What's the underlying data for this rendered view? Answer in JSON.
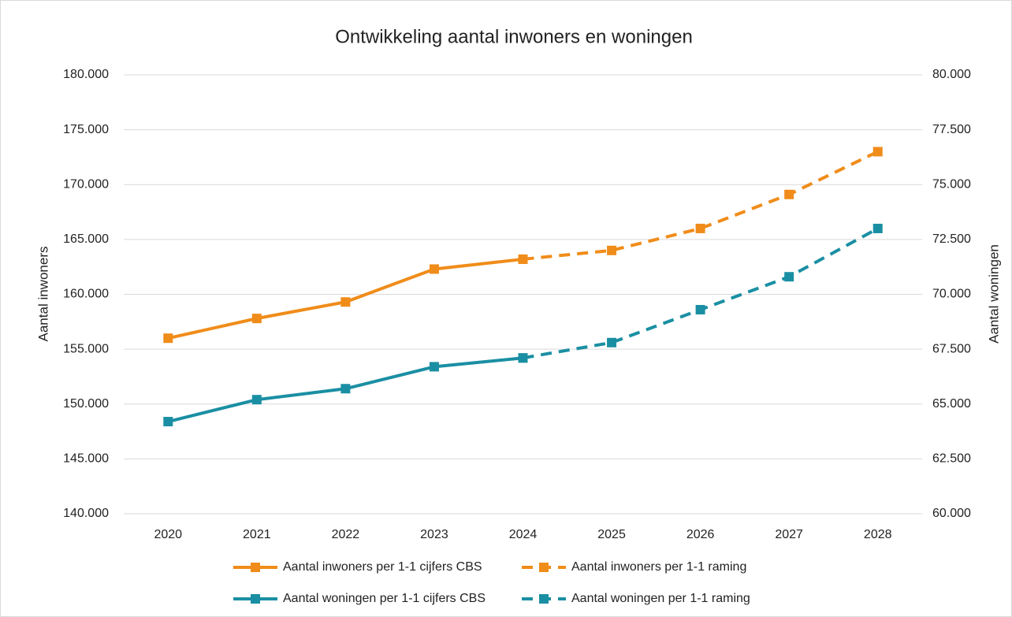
{
  "chart_data": {
    "type": "line",
    "title": "Ontwikkeling aantal inwoners en woningen",
    "y_label": "Aantal inwoners",
    "y2_label": "Aantal woningen",
    "categories": [
      "2020",
      "2021",
      "2022",
      "2023",
      "2024",
      "2025",
      "2026",
      "2027",
      "2028"
    ],
    "ylim": [
      140000,
      180000
    ],
    "yticks": [
      {
        "value": 140000,
        "label": "140.000"
      },
      {
        "value": 145000,
        "label": "145.000"
      },
      {
        "value": 150000,
        "label": "150.000"
      },
      {
        "value": 155000,
        "label": "155.000"
      },
      {
        "value": 160000,
        "label": "160.000"
      },
      {
        "value": 165000,
        "label": "165.000"
      },
      {
        "value": 170000,
        "label": "170.000"
      },
      {
        "value": 175000,
        "label": "175.000"
      },
      {
        "value": 180000,
        "label": "180.000"
      }
    ],
    "y2lim": [
      60000,
      80000
    ],
    "y2ticks": [
      {
        "value": 60000,
        "label": "60.000"
      },
      {
        "value": 62500,
        "label": "62.500"
      },
      {
        "value": 65000,
        "label": "65.000"
      },
      {
        "value": 67500,
        "label": "67.500"
      },
      {
        "value": 70000,
        "label": "70.000"
      },
      {
        "value": 72500,
        "label": "72.500"
      },
      {
        "value": 75000,
        "label": "75.000"
      },
      {
        "value": 77500,
        "label": "77.500"
      },
      {
        "value": 80000,
        "label": "80.000"
      }
    ],
    "grid": true,
    "legend": "bottom",
    "series": [
      {
        "name": "Aantal inwoners per 1-1 cijfers CBS",
        "color": "#f08c1a",
        "dashed": false,
        "values": [
          156000,
          157800,
          159300,
          162300,
          163200,
          null,
          null,
          null,
          null
        ]
      },
      {
        "name": "Aantal inwoners per 1-1 raming",
        "color": "#f08c1a",
        "dashed": true,
        "values": [
          null,
          null,
          null,
          null,
          163200,
          164000,
          166000,
          169100,
          173000
        ]
      },
      {
        "name": "Aantal woningen per 1-1 cijfers CBS",
        "color": "#1a8fa3",
        "dashed": false,
        "axis": "y2",
        "values": [
          64200,
          65200,
          65700,
          66700,
          67100,
          null,
          null,
          null,
          null
        ]
      },
      {
        "name": "Aantal woningen per 1-1 raming",
        "color": "#1a8fa3",
        "dashed": true,
        "axis": "y2",
        "values": [
          null,
          null,
          null,
          null,
          67100,
          67800,
          69300,
          70800,
          73000
        ]
      }
    ]
  }
}
